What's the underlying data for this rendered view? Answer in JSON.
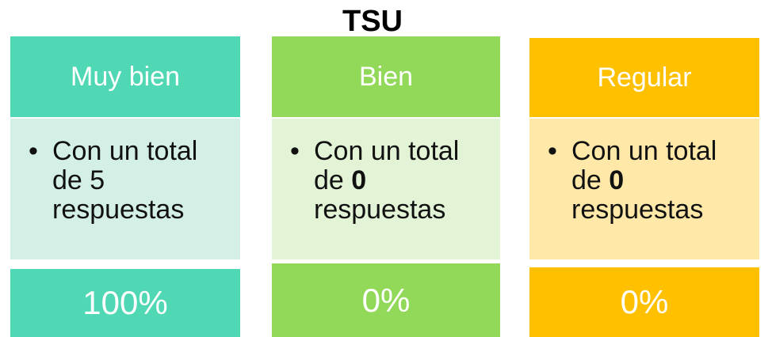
{
  "title": "TSU",
  "columns": [
    {
      "header": "Muy bien",
      "text_before": "Con un total de",
      "count": 5,
      "count_bold": false,
      "text_after": "respuestas",
      "percent": "100%",
      "color": "#50d8b4",
      "body_color": "#d4f0e6"
    },
    {
      "header": "Bien",
      "text_before": "Con un total de",
      "count": 0,
      "count_bold": true,
      "text_after": "respuestas",
      "percent": "0%",
      "color": "#92d95a",
      "body_color": "#e2f3d6"
    },
    {
      "header": "Regular",
      "text_before": "Con un total de",
      "count": 0,
      "count_bold": true,
      "text_after": "respuestas",
      "percent": "0%",
      "color": "#ffc000",
      "body_color": "#ffe8a8"
    }
  ]
}
